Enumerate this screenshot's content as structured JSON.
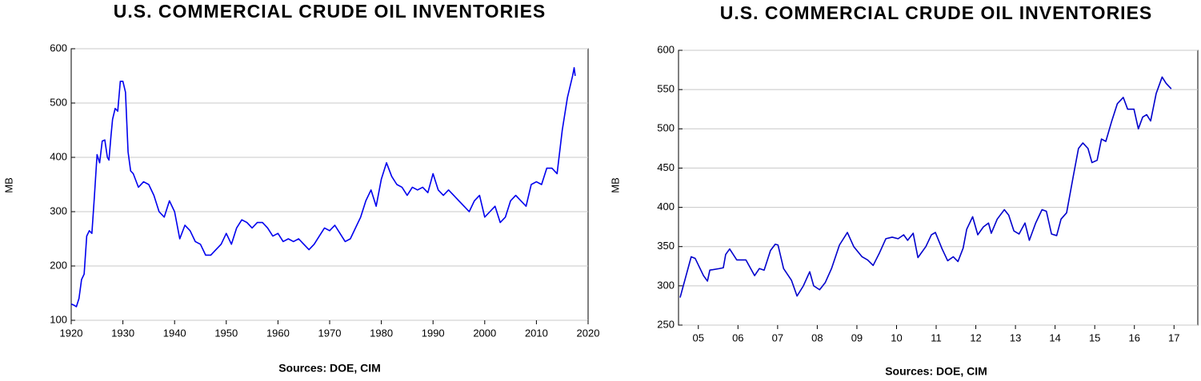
{
  "chart_data": [
    {
      "type": "line",
      "title": "U.S. COMMERCIAL CRUDE OIL INVENTORIES",
      "ylabel": "MB",
      "source": "Sources:  DOE, CIM",
      "color": "#0000ee",
      "grid": true,
      "xlim": [
        1920,
        2020
      ],
      "xticks": [
        1920,
        1930,
        1940,
        1950,
        1960,
        1970,
        1980,
        1990,
        2000,
        2010,
        2020
      ],
      "ylim": [
        100,
        600
      ],
      "yticks": [
        100,
        200,
        300,
        400,
        500,
        600
      ],
      "x": [
        1920,
        1920.5,
        1921,
        1921.5,
        1922,
        1922.5,
        1923,
        1923.5,
        1924,
        1924.5,
        1925,
        1925.5,
        1926,
        1926.5,
        1927,
        1927.3,
        1927.7,
        1928,
        1928.5,
        1929,
        1929.5,
        1930,
        1930.5,
        1931,
        1931.5,
        1932,
        1933,
        1934,
        1935,
        1936,
        1937,
        1938,
        1939,
        1940,
        1941,
        1942,
        1943,
        1944,
        1945,
        1946,
        1947,
        1948,
        1949,
        1950,
        1951,
        1952,
        1953,
        1954,
        1955,
        1956,
        1957,
        1958,
        1959,
        1960,
        1961,
        1962,
        1963,
        1964,
        1965,
        1966,
        1967,
        1968,
        1969,
        1970,
        1971,
        1972,
        1973,
        1974,
        1975,
        1976,
        1977,
        1978,
        1979,
        1980,
        1981,
        1982,
        1983,
        1984,
        1985,
        1986,
        1987,
        1988,
        1989,
        1990,
        1991,
        1992,
        1993,
        1994,
        1995,
        1996,
        1997,
        1998,
        1999,
        2000,
        2001,
        2002,
        2003,
        2004,
        2005,
        2006,
        2007,
        2008,
        2009,
        2010,
        2011,
        2012,
        2013,
        2014,
        2015,
        2016,
        2017,
        2017.3,
        2017.5
      ],
      "values": [
        130,
        128,
        125,
        140,
        175,
        185,
        255,
        265,
        260,
        330,
        405,
        390,
        430,
        432,
        400,
        395,
        440,
        470,
        490,
        485,
        540,
        540,
        520,
        410,
        375,
        370,
        345,
        355,
        350,
        330,
        300,
        290,
        320,
        300,
        250,
        275,
        265,
        245,
        240,
        220,
        220,
        230,
        240,
        260,
        240,
        270,
        285,
        280,
        270,
        280,
        280,
        270,
        255,
        260,
        245,
        250,
        245,
        250,
        240,
        230,
        240,
        255,
        270,
        265,
        275,
        260,
        245,
        250,
        270,
        290,
        320,
        340,
        310,
        360,
        390,
        365,
        350,
        345,
        330,
        345,
        340,
        345,
        335,
        370,
        340,
        330,
        340,
        330,
        320,
        310,
        300,
        320,
        330,
        290,
        300,
        310,
        280,
        290,
        320,
        330,
        320,
        310,
        350,
        355,
        350,
        380,
        380,
        370,
        450,
        510,
        550,
        565,
        550
      ]
    },
    {
      "type": "line",
      "title": "U.S. COMMERCIAL CRUDE OIL INVENTORIES",
      "ylabel": "MB",
      "source": "Sources:  DOE, CIM",
      "color": "#0000cc",
      "grid": true,
      "xlim": [
        2005,
        2018.1
      ],
      "xticks": [
        {
          "value": 2005.5,
          "label": "05"
        },
        {
          "value": 2006.5,
          "label": "06"
        },
        {
          "value": 2007.5,
          "label": "07"
        },
        {
          "value": 2008.5,
          "label": "08"
        },
        {
          "value": 2009.5,
          "label": "09"
        },
        {
          "value": 2010.5,
          "label": "10"
        },
        {
          "value": 2011.5,
          "label": "11"
        },
        {
          "value": 2012.5,
          "label": "12"
        },
        {
          "value": 2013.5,
          "label": "13"
        },
        {
          "value": 2014.5,
          "label": "14"
        },
        {
          "value": 2015.5,
          "label": "15"
        },
        {
          "value": 2016.5,
          "label": "16"
        },
        {
          "value": 2017.5,
          "label": "17"
        }
      ],
      "ylim": [
        250,
        600
      ],
      "yticks": [
        250,
        300,
        350,
        400,
        450,
        500,
        550,
        600
      ],
      "x": [
        2005.04,
        2005.32,
        2005.42,
        2005.63,
        2005.73,
        2005.79,
        2006.03,
        2006.13,
        2006.19,
        2006.29,
        2006.47,
        2006.7,
        2006.92,
        2007.04,
        2007.16,
        2007.32,
        2007.44,
        2007.51,
        2007.65,
        2007.85,
        2007.99,
        2008.15,
        2008.31,
        2008.41,
        2008.56,
        2008.7,
        2008.86,
        2009.06,
        2009.26,
        2009.42,
        2009.63,
        2009.77,
        2009.91,
        2010.07,
        2010.23,
        2010.39,
        2010.54,
        2010.68,
        2010.78,
        2010.92,
        2011.04,
        2011.24,
        2011.38,
        2011.48,
        2011.65,
        2011.79,
        2011.93,
        2012.05,
        2012.18,
        2012.27,
        2012.42,
        2012.55,
        2012.69,
        2012.82,
        2012.89,
        2013.04,
        2013.22,
        2013.33,
        2013.46,
        2013.59,
        2013.74,
        2013.85,
        2014.01,
        2014.17,
        2014.28,
        2014.41,
        2014.54,
        2014.65,
        2014.79,
        2014.96,
        2015.09,
        2015.2,
        2015.33,
        2015.43,
        2015.56,
        2015.67,
        2015.78,
        2015.93,
        2016.07,
        2016.22,
        2016.33,
        2016.49,
        2016.6,
        2016.71,
        2016.81,
        2016.91,
        2017.05,
        2017.2,
        2017.3,
        2017.43
      ],
      "values": [
        285,
        337,
        335,
        313,
        306,
        320,
        322,
        323,
        340,
        347,
        333,
        333,
        313,
        322,
        320,
        345,
        353,
        352,
        322,
        307,
        287,
        300,
        318,
        300,
        295,
        304,
        322,
        352,
        368,
        350,
        337,
        333,
        326,
        342,
        360,
        362,
        360,
        365,
        358,
        367,
        336,
        350,
        365,
        368,
        347,
        332,
        337,
        331,
        348,
        372,
        388,
        365,
        375,
        380,
        367,
        385,
        397,
        390,
        370,
        366,
        380,
        358,
        380,
        397,
        395,
        366,
        364,
        385,
        393,
        440,
        475,
        482,
        475,
        457,
        460,
        487,
        484,
        510,
        532,
        540,
        525,
        525,
        500,
        515,
        518,
        510,
        545,
        566,
        558,
        551
      ]
    }
  ]
}
